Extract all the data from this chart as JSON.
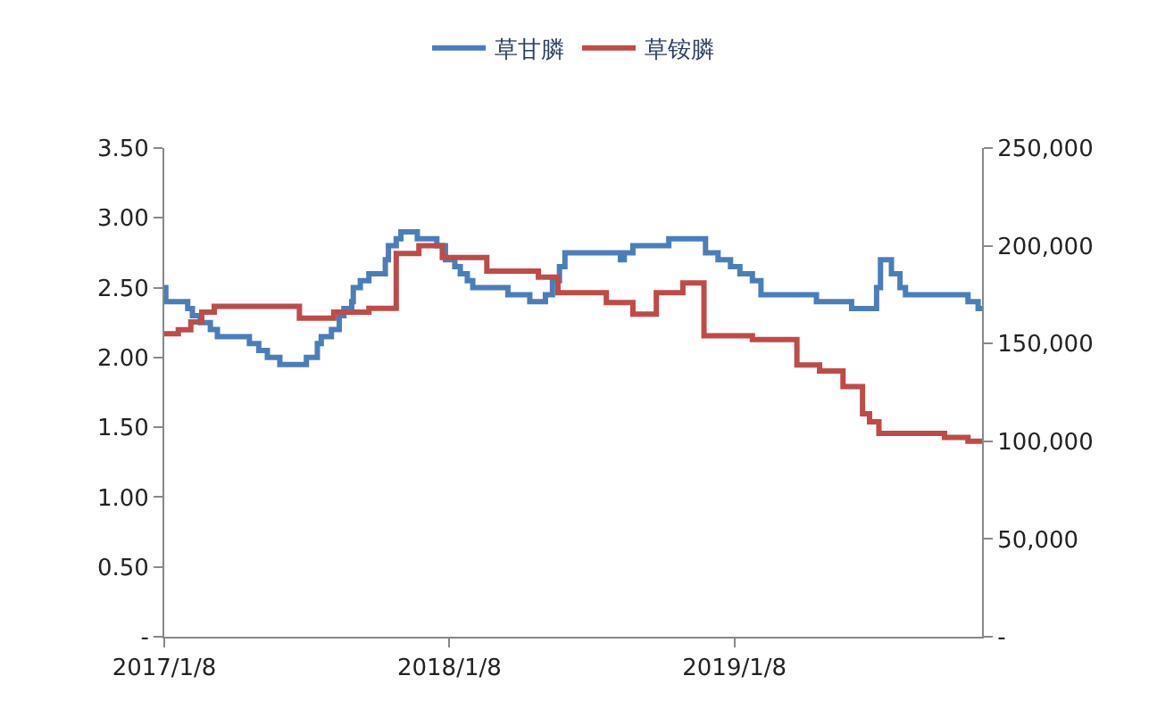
{
  "chart_data": {
    "type": "step",
    "series": [
      {
        "name": "草甘膦",
        "color": "#4a7ebb",
        "axis": "y",
        "x": [
          "2017-01-08",
          "2017-01-10",
          "2017-02-07",
          "2017-02-13",
          "2017-02-23",
          "2017-03-08",
          "2017-03-17",
          "2017-04-27",
          "2017-05-09",
          "2017-05-20",
          "2017-06-05",
          "2017-07-09",
          "2017-07-23",
          "2017-07-28",
          "2017-08-10",
          "2017-08-20",
          "2017-08-26",
          "2017-09-05",
          "2017-09-07",
          "2017-09-16",
          "2017-09-27",
          "2017-10-18",
          "2017-10-22",
          "2017-11-01",
          "2017-11-07",
          "2017-11-28",
          "2017-12-23",
          "2018-01-03",
          "2018-01-15",
          "2018-01-22",
          "2018-01-31",
          "2018-02-07",
          "2018-03-24",
          "2018-04-21",
          "2018-05-11",
          "2018-05-20",
          "2018-05-29",
          "2018-06-05",
          "2018-08-15",
          "2018-08-20",
          "2018-08-31",
          "2018-10-16",
          "2018-12-02",
          "2018-12-18",
          "2019-01-03",
          "2019-01-15",
          "2019-01-31",
          "2019-02-11",
          "2019-04-23",
          "2019-06-07",
          "2019-07-09",
          "2019-07-14",
          "2019-07-28",
          "2019-08-08",
          "2019-08-15",
          "2019-11-03",
          "2019-11-16",
          "2019-11-21"
        ],
        "values": [
          2.5,
          2.4,
          2.35,
          2.3,
          2.25,
          2.2,
          2.15,
          2.1,
          2.05,
          2.0,
          1.95,
          2.0,
          2.1,
          2.15,
          2.2,
          2.3,
          2.35,
          2.4,
          2.5,
          2.55,
          2.6,
          2.7,
          2.8,
          2.85,
          2.9,
          2.85,
          2.8,
          2.7,
          2.65,
          2.6,
          2.55,
          2.5,
          2.45,
          2.4,
          2.45,
          2.55,
          2.65,
          2.75,
          2.7,
          2.75,
          2.8,
          2.85,
          2.75,
          2.7,
          2.65,
          2.6,
          2.55,
          2.45,
          2.4,
          2.35,
          2.5,
          2.7,
          2.6,
          2.5,
          2.45,
          2.4,
          2.35,
          2.35
        ]
      },
      {
        "name": "草铵膦",
        "color": "#be4b48",
        "axis": "y2",
        "x": [
          "2017-01-08",
          "2017-01-26",
          "2017-02-11",
          "2017-02-25",
          "2017-03-13",
          "2017-06-30",
          "2017-08-13",
          "2017-09-27",
          "2017-11-01",
          "2017-11-30",
          "2017-12-30",
          "2018-02-25",
          "2018-05-02",
          "2018-05-27",
          "2018-07-28",
          "2018-08-31",
          "2018-09-30",
          "2018-11-03",
          "2018-11-30",
          "2019-01-31",
          "2019-03-29",
          "2019-04-27",
          "2019-05-27",
          "2019-06-21",
          "2019-06-30",
          "2019-07-12",
          "2019-10-04",
          "2019-11-03",
          "2019-11-21"
        ],
        "values": [
          155000,
          157000,
          161000,
          166000,
          169000,
          163000,
          166000,
          168000,
          196000,
          200000,
          194000,
          187000,
          184000,
          176000,
          171000,
          165000,
          176000,
          181000,
          154000,
          152000,
          139000,
          136000,
          128000,
          114000,
          110000,
          104000,
          102000,
          100000,
          100000
        ]
      }
    ],
    "xlim": [
      "2017-01-08",
      "2019-11-21"
    ],
    "xticks": [
      {
        "value": "2017-01-08",
        "label": "2017/1/8"
      },
      {
        "value": "2018-01-08",
        "label": "2018/1/8"
      },
      {
        "value": "2019-01-08",
        "label": "2019/1/8"
      }
    ],
    "ylim": [
      0,
      3.5
    ],
    "yticks": [
      {
        "value": 0,
        "label": "-"
      },
      {
        "value": 0.5,
        "label": "0.50"
      },
      {
        "value": 1,
        "label": "1.00"
      },
      {
        "value": 1.5,
        "label": "1.50"
      },
      {
        "value": 2,
        "label": "2.00"
      },
      {
        "value": 2.5,
        "label": "2.50"
      },
      {
        "value": 3,
        "label": "3.00"
      },
      {
        "value": 3.5,
        "label": "3.50"
      }
    ],
    "y2lim": [
      0,
      250000
    ],
    "y2ticks": [
      {
        "value": 0,
        "label": "-"
      },
      {
        "value": 50000,
        "label": "50,000"
      },
      {
        "value": 100000,
        "label": "100,000"
      },
      {
        "value": 150000,
        "label": "150,000"
      },
      {
        "value": 200000,
        "label": "200,000"
      },
      {
        "value": 250000,
        "label": "250,000"
      }
    ],
    "legend": "top"
  }
}
